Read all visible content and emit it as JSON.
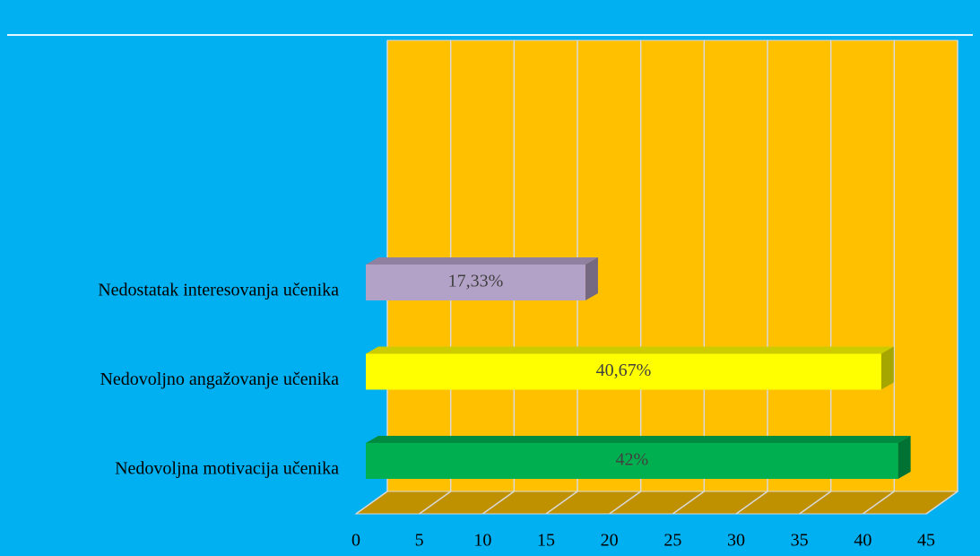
{
  "chart_data": {
    "type": "bar3d_horizontal",
    "categories": [
      "Nedovoljna motivacija učenika",
      "Nedovoljno angažovanje učenika",
      "Nedostatak interesovanja učenika"
    ],
    "values": [
      42,
      40.67,
      17.33
    ],
    "value_labels": [
      "42%",
      "40,67%",
      "17,33%"
    ],
    "colors": [
      "#00b050",
      "#ffff00",
      "#b3a2c7"
    ],
    "xlim": [
      0,
      45
    ],
    "xticks": [
      0,
      5,
      10,
      15,
      20,
      25,
      30,
      35,
      40,
      45
    ],
    "grid": true
  }
}
